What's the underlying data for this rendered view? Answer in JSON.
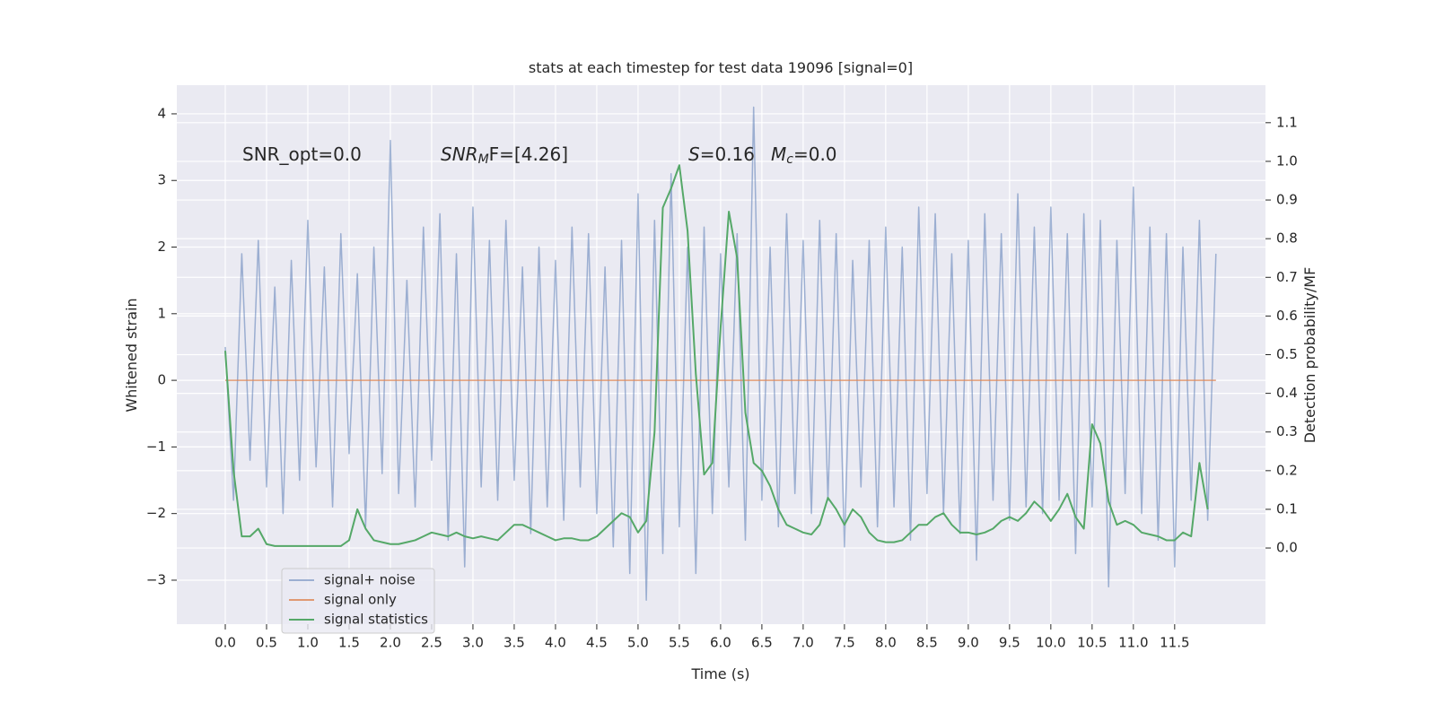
{
  "chart_data": {
    "type": "line",
    "title": "stats at each timestep for test data 19096 [signal=0]",
    "xlabel": "Time (s)",
    "ylabel": "Whitened strain",
    "y2label": "Detection probability/MF",
    "xlim": [
      -0.587,
      12.6
    ],
    "ylim": [
      -3.66,
      4.43
    ],
    "y2lim": [
      -0.197,
      1.197
    ],
    "grid": true,
    "legend": "lower left",
    "xticks": [
      {
        "value": 0,
        "label": "0.0"
      },
      {
        "value": 0.5,
        "label": "0.5"
      },
      {
        "value": 1,
        "label": "1.0"
      },
      {
        "value": 1.5,
        "label": "1.5"
      },
      {
        "value": 2,
        "label": "2.0"
      },
      {
        "value": 2.5,
        "label": "2.5"
      },
      {
        "value": 3,
        "label": "3.0"
      },
      {
        "value": 3.5,
        "label": "3.5"
      },
      {
        "value": 4,
        "label": "4.0"
      },
      {
        "value": 4.5,
        "label": "4.5"
      },
      {
        "value": 5,
        "label": "5.0"
      },
      {
        "value": 5.5,
        "label": "5.5"
      },
      {
        "value": 6,
        "label": "6.0"
      },
      {
        "value": 6.5,
        "label": "6.5"
      },
      {
        "value": 7,
        "label": "7.0"
      },
      {
        "value": 7.5,
        "label": "7.5"
      },
      {
        "value": 8,
        "label": "8.0"
      },
      {
        "value": 8.5,
        "label": "8.5"
      },
      {
        "value": 9,
        "label": "9.0"
      },
      {
        "value": 9.5,
        "label": "9.5"
      },
      {
        "value": 10,
        "label": "10.0"
      },
      {
        "value": 10.5,
        "label": "10.5"
      },
      {
        "value": 11,
        "label": "11.0"
      },
      {
        "value": 11.5,
        "label": "11.5"
      }
    ],
    "yticks": [
      {
        "value": -3,
        "label": "−3"
      },
      {
        "value": -2,
        "label": "−2"
      },
      {
        "value": -1,
        "label": "−1"
      },
      0,
      1,
      2,
      3,
      4
    ],
    "y2ticks": [
      {
        "value": 0,
        "label": "0.0"
      },
      {
        "value": 0.1,
        "label": "0.1"
      },
      {
        "value": 0.2,
        "label": "0.2"
      },
      {
        "value": 0.3,
        "label": "0.3"
      },
      {
        "value": 0.4,
        "label": "0.4"
      },
      {
        "value": 0.5,
        "label": "0.5"
      },
      {
        "value": 0.6,
        "label": "0.6"
      },
      {
        "value": 0.7,
        "label": "0.7"
      },
      {
        "value": 0.8,
        "label": "0.8"
      },
      {
        "value": 0.9,
        "label": "0.9"
      },
      {
        "value": 1,
        "label": "1.0"
      },
      {
        "value": 1.1,
        "label": "1.1"
      }
    ],
    "annotations": [
      {
        "parts": [
          {
            "text": "SNR_opt=0.0",
            "style": "normal"
          }
        ]
      },
      {
        "parts": [
          {
            "text": "SNR",
            "style": "italic"
          },
          {
            "text": "M",
            "style": "italic-sub"
          },
          {
            "text": "F=[4.26]",
            "style": "normal"
          }
        ]
      },
      {
        "parts": [
          {
            "text": "S",
            "style": "italic"
          },
          {
            "text": "=0.16",
            "style": "normal"
          }
        ]
      },
      {
        "parts": [
          {
            "text": "M",
            "style": "italic"
          },
          {
            "text": "c",
            "style": "italic-sub"
          },
          {
            "text": "=0.0",
            "style": "normal"
          }
        ]
      }
    ],
    "x": [
      0,
      0.1,
      0.2,
      0.3,
      0.4,
      0.5,
      0.6,
      0.7,
      0.8,
      0.9,
      1,
      1.1,
      1.2,
      1.3,
      1.4,
      1.5,
      1.6,
      1.7,
      1.8,
      1.9,
      2,
      2.1,
      2.2,
      2.3,
      2.4,
      2.5,
      2.6,
      2.7,
      2.8,
      2.9,
      3,
      3.1,
      3.2,
      3.3,
      3.4,
      3.5,
      3.6,
      3.7,
      3.8,
      3.9,
      4,
      4.1,
      4.2,
      4.3,
      4.4,
      4.5,
      4.6,
      4.7,
      4.8,
      4.9,
      5,
      5.1,
      5.2,
      5.3,
      5.4,
      5.5,
      5.6,
      5.7,
      5.8,
      5.9,
      6,
      6.1,
      6.2,
      6.3,
      6.4,
      6.5,
      6.6,
      6.7,
      6.8,
      6.9,
      7,
      7.1,
      7.2,
      7.3,
      7.4,
      7.5,
      7.6,
      7.7,
      7.8,
      7.9,
      8,
      8.1,
      8.2,
      8.3,
      8.4,
      8.5,
      8.6,
      8.7,
      8.8,
      8.9,
      9,
      9.1,
      9.2,
      9.3,
      9.4,
      9.5,
      9.6,
      9.7,
      9.8,
      9.9,
      10,
      10.1,
      10.2,
      10.3,
      10.4,
      10.5,
      10.6,
      10.7,
      10.8,
      10.9,
      11,
      11.1,
      11.2,
      11.3,
      11.4,
      11.5,
      11.6,
      11.7,
      11.8,
      11.9,
      12
    ],
    "series": [
      {
        "name": "signal+ noise",
        "color": "#4c72b0",
        "opacity": 0.5,
        "axis": "y",
        "values": [
          0.5,
          -1.8,
          1.9,
          -1.2,
          2.1,
          -1.6,
          1.4,
          -2.0,
          1.8,
          -1.5,
          2.4,
          -1.3,
          1.7,
          -1.9,
          2.2,
          -1.1,
          1.6,
          -2.2,
          2.0,
          -1.4,
          3.6,
          -1.7,
          1.5,
          -1.9,
          2.3,
          -1.2,
          2.5,
          -2.4,
          1.9,
          -2.8,
          2.6,
          -1.6,
          2.1,
          -1.8,
          2.4,
          -1.5,
          1.7,
          -2.3,
          2.0,
          -1.9,
          1.8,
          -2.1,
          2.3,
          -1.6,
          2.2,
          -2.0,
          1.7,
          -2.5,
          2.1,
          -2.9,
          2.8,
          -3.3,
          2.4,
          -2.6,
          3.1,
          -2.2,
          2.0,
          -2.9,
          2.3,
          -2.0,
          1.9,
          -1.6,
          2.2,
          -2.4,
          4.1,
          -1.8,
          2.0,
          -2.2,
          2.5,
          -1.7,
          2.1,
          -2.0,
          2.4,
          -1.8,
          2.2,
          -2.5,
          1.8,
          -1.6,
          2.1,
          -2.2,
          2.3,
          -1.9,
          2.0,
          -2.4,
          2.6,
          -1.7,
          2.5,
          -2.0,
          1.9,
          -2.3,
          2.1,
          -2.7,
          2.5,
          -1.8,
          2.2,
          -2.1,
          2.8,
          -1.9,
          2.3,
          -2.0,
          2.6,
          -1.8,
          2.2,
          -2.6,
          2.5,
          -1.9,
          2.4,
          -3.1,
          2.1,
          -1.7,
          2.9,
          -2.0,
          2.3,
          -2.4,
          2.2,
          -2.8,
          2.0,
          -1.8,
          2.4,
          -2.1,
          1.9
        ]
      },
      {
        "name": "signal only",
        "color": "#dd8452",
        "opacity": 0.8,
        "axis": "y",
        "values": [
          0,
          0,
          0,
          0,
          0,
          0,
          0,
          0,
          0,
          0,
          0,
          0,
          0,
          0,
          0,
          0,
          0,
          0,
          0,
          0,
          0,
          0,
          0,
          0,
          0,
          0,
          0,
          0,
          0,
          0,
          0,
          0,
          0,
          0,
          0,
          0,
          0,
          0,
          0,
          0,
          0,
          0,
          0,
          0,
          0,
          0,
          0,
          0,
          0,
          0,
          0,
          0,
          0,
          0,
          0,
          0,
          0,
          0,
          0,
          0,
          0,
          0,
          0,
          0,
          0,
          0,
          0,
          0,
          0,
          0,
          0,
          0,
          0,
          0,
          0,
          0,
          0,
          0,
          0,
          0,
          0,
          0,
          0,
          0,
          0,
          0,
          0,
          0,
          0,
          0,
          0,
          0,
          0,
          0,
          0,
          0,
          0,
          0,
          0,
          0,
          0,
          0,
          0,
          0,
          0,
          0,
          0,
          0,
          0,
          0,
          0,
          0,
          0,
          0,
          0,
          0,
          0,
          0,
          0,
          0,
          0
        ]
      },
      {
        "name": "signal statistics",
        "color": "#55a868",
        "opacity": 1,
        "axis": "y2",
        "values": [
          0.51,
          0.2,
          0.03,
          0.03,
          0.05,
          0.01,
          0.005,
          0.005,
          0.005,
          0.005,
          0.005,
          0.005,
          0.005,
          0.005,
          0.005,
          0.02,
          0.1,
          0.05,
          0.02,
          0.015,
          0.01,
          0.01,
          0.015,
          0.02,
          0.03,
          0.04,
          0.035,
          0.03,
          0.04,
          0.03,
          0.025,
          0.03,
          0.025,
          0.02,
          0.04,
          0.06,
          0.06,
          0.05,
          0.04,
          0.03,
          0.02,
          0.025,
          0.025,
          0.02,
          0.02,
          0.03,
          0.05,
          0.07,
          0.09,
          0.08,
          0.04,
          0.07,
          0.3,
          0.88,
          0.93,
          0.99,
          0.82,
          0.45,
          0.19,
          0.22,
          0.57,
          0.87,
          0.75,
          0.35,
          0.22,
          0.2,
          0.16,
          0.1,
          0.06,
          0.05,
          0.04,
          0.035,
          0.06,
          0.13,
          0.1,
          0.06,
          0.1,
          0.08,
          0.04,
          0.02,
          0.015,
          0.015,
          0.02,
          0.04,
          0.06,
          0.06,
          0.08,
          0.09,
          0.06,
          0.04,
          0.04,
          0.035,
          0.04,
          0.05,
          0.07,
          0.08,
          0.07,
          0.09,
          0.12,
          0.1,
          0.07,
          0.1,
          0.14,
          0.08,
          0.05,
          0.32,
          0.27,
          0.12,
          0.06,
          0.07,
          0.06,
          0.04,
          0.035,
          0.03,
          0.02,
          0.02,
          0.04,
          0.03,
          0.22,
          0.1,
          null
        ]
      }
    ]
  }
}
